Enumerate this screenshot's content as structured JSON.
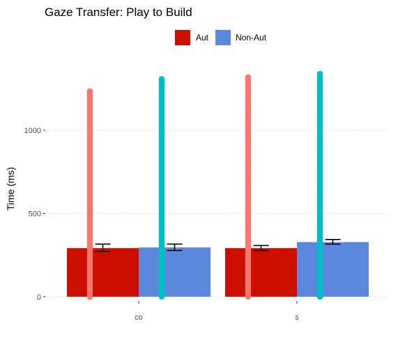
{
  "chart_data": {
    "type": "bar",
    "title": "Gaze Transfer: Play to Build",
    "xlabel": "",
    "ylabel": "Time (ms)",
    "categories": [
      "co",
      "s"
    ],
    "ylim": [
      0,
      1400
    ],
    "yticks": [
      0,
      500,
      1000
    ],
    "grid": true,
    "legend_position": "top",
    "series": [
      {
        "name": "Aut",
        "color": "#cc0f00",
        "values": [
          292,
          292
        ],
        "error": [
          [
            272,
            316
          ],
          [
            278,
            308
          ]
        ]
      },
      {
        "name": "Non-Aut",
        "color": "#5b87dc",
        "values": [
          296,
          328
        ],
        "error": [
          [
            278,
            316
          ],
          [
            316,
            344
          ]
        ]
      }
    ],
    "points": [
      {
        "series": "Aut",
        "category": "co",
        "color": "#f8766d",
        "ymin": 0,
        "ymax": 1240
      },
      {
        "series": "Non-Aut",
        "category": "co",
        "color": "#00bfc4",
        "ymin": 0,
        "ymax": 1310
      },
      {
        "series": "Aut",
        "category": "s",
        "color": "#f8766d",
        "ymin": 0,
        "ymax": 1320
      },
      {
        "series": "Non-Aut",
        "category": "s",
        "color": "#00bfc4",
        "ymin": 0,
        "ymax": 1345
      }
    ]
  }
}
